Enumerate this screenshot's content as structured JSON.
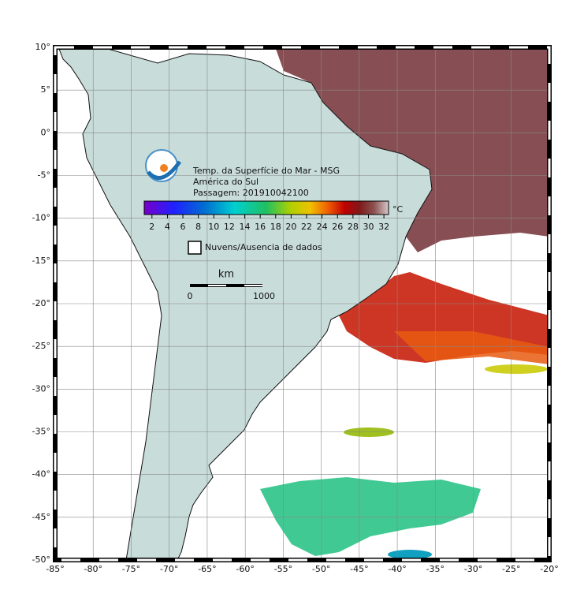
{
  "map": {
    "lonlim": [
      -85,
      -20
    ],
    "latlim": [
      -50,
      10
    ],
    "lon_ticks": [
      {
        "value": -85,
        "label": "-85°"
      },
      {
        "value": -80,
        "label": "-80°"
      },
      {
        "value": -75,
        "label": "-75°"
      },
      {
        "value": -70,
        "label": "-70°"
      },
      {
        "value": -65,
        "label": "-65°"
      },
      {
        "value": -60,
        "label": "-60°"
      },
      {
        "value": -55,
        "label": "-55°"
      },
      {
        "value": -50,
        "label": "-50°"
      },
      {
        "value": -45,
        "label": "-45°"
      },
      {
        "value": -40,
        "label": "-40°"
      },
      {
        "value": -35,
        "label": "-35°"
      },
      {
        "value": -30,
        "label": "-30°"
      },
      {
        "value": -25,
        "label": "-25°"
      },
      {
        "value": -20,
        "label": "-20°"
      }
    ],
    "lat_ticks": [
      {
        "value": 10,
        "label": "10°"
      },
      {
        "value": 5,
        "label": "5°"
      },
      {
        "value": 0,
        "label": "0°"
      },
      {
        "value": -5,
        "label": "-5°"
      },
      {
        "value": -10,
        "label": "-10°"
      },
      {
        "value": -15,
        "label": "-15°"
      },
      {
        "value": -20,
        "label": "-20°"
      },
      {
        "value": -25,
        "label": "-25°"
      },
      {
        "value": -30,
        "label": "-30°"
      },
      {
        "value": -35,
        "label": "-35°"
      },
      {
        "value": -40,
        "label": "-40°"
      },
      {
        "value": -45,
        "label": "-45°"
      },
      {
        "value": -50,
        "label": "-50°"
      }
    ]
  },
  "header": {
    "title": "Temp. da Superfície do Mar - MSG",
    "region": "América do Sul",
    "pass": "Passagem: 201910042100"
  },
  "colorbar": {
    "unit": "°C",
    "lim": [
      1,
      32.6
    ],
    "ticks": [
      2,
      4,
      6,
      8,
      10,
      12,
      14,
      16,
      18,
      20,
      22,
      24,
      26,
      28,
      30,
      32
    ]
  },
  "legend": {
    "label": "Nuvens/Ausencia de dados"
  },
  "scale_bar": {
    "unit": "km",
    "ticks": [
      0,
      1000
    ]
  }
}
